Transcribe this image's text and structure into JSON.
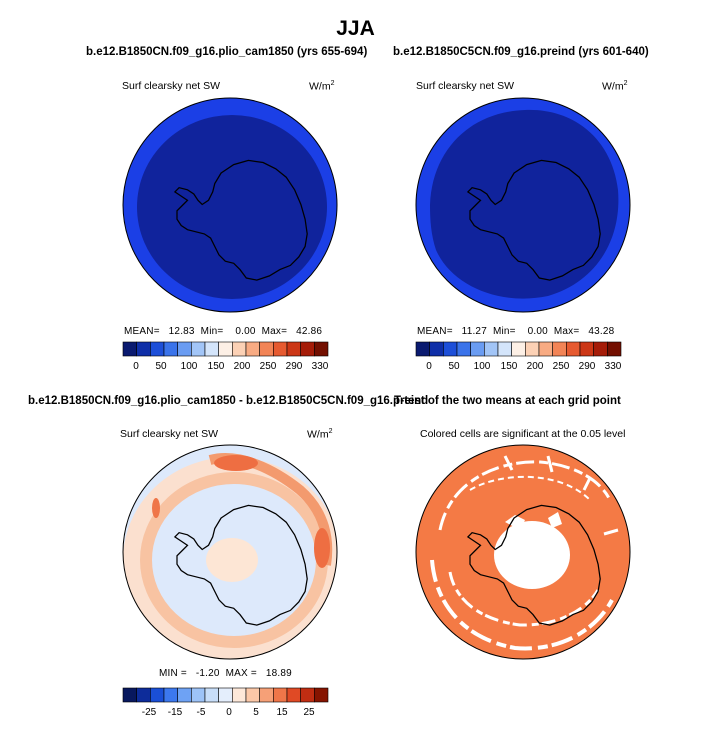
{
  "title": "JJA",
  "panels": [
    {
      "id": "plio",
      "case_title": "b.e12.B1850CN.f09_g16.plio_cam1850 (yrs 655-694)",
      "variable": "Surf clearsky net SW",
      "units_base": "W/m",
      "units_exp": "2",
      "stats": {
        "mean_label": "MEAN=",
        "mean": "12.83",
        "min_label": "Min=",
        "min": "0.00",
        "max_label": "Max=",
        "max": "42.86"
      }
    },
    {
      "id": "preind",
      "case_title": "b.e12.B1850C5CN.f09_g16.preind (yrs 601-640)",
      "variable": "Surf clearsky net SW",
      "units_base": "W/m",
      "units_exp": "2",
      "stats": {
        "mean_label": "MEAN=",
        "mean": "11.27",
        "min_label": "Min=",
        "min": "0.00",
        "max_label": "Max=",
        "max": "43.28"
      }
    },
    {
      "id": "diff",
      "case_title": "b.e12.B1850CN.f09_g16.plio_cam1850 - b.e12.B1850C5CN.f09_g16.preind",
      "variable": "Surf clearsky net SW",
      "units_base": "W/m",
      "units_exp": "2",
      "stats_text": "MIN =   -1.20  MAX =   18.89"
    },
    {
      "id": "ttest",
      "case_title": "T-test of the two means at each grid point",
      "subtitle": "Colored cells are significant at the 0.05 level"
    }
  ],
  "colors": {
    "deep_blue": "#10239c",
    "ring_blue": "#1b3fe6",
    "significant": "#f47a45",
    "diff_palette": [
      "#08185e",
      "#0d2c9a",
      "#1a4fd6",
      "#3c78ee",
      "#6ea2f4",
      "#9dc3f7",
      "#c8def9",
      "#e4eefc",
      "#fde8d9",
      "#fbc8a8",
      "#f6a077",
      "#ef7649",
      "#e04a25",
      "#c02d12",
      "#861400"
    ],
    "abs_palette": [
      "#0a1a70",
      "#0f2fa8",
      "#1d4fd8",
      "#3a73ea",
      "#6a9cf2",
      "#a2c5f7",
      "#d4e5fb",
      "#fdf0e6",
      "#fcd1b5",
      "#f8ab83",
      "#f28456",
      "#e65a30",
      "#cc3716",
      "#a51c08",
      "#730f00"
    ]
  },
  "chart_data": [
    {
      "type": "heatmap",
      "projection": "south polar stereographic",
      "title": "b.e12.B1850CN.f09_g16.plio_cam1850 (yrs 655-694)",
      "variable": "Surf clearsky net SW",
      "units": "W/m2",
      "colorbar_ticks": [
        0,
        50,
        100,
        150,
        200,
        250,
        290,
        330
      ],
      "stats": {
        "mean": 12.83,
        "min": 0.0,
        "max": 42.86
      }
    },
    {
      "type": "heatmap",
      "projection": "south polar stereographic",
      "title": "b.e12.B1850C5CN.f09_g16.preind (yrs 601-640)",
      "variable": "Surf clearsky net SW",
      "units": "W/m2",
      "colorbar_ticks": [
        0,
        50,
        100,
        150,
        200,
        250,
        290,
        330
      ],
      "stats": {
        "mean": 11.27,
        "min": 0.0,
        "max": 43.28
      }
    },
    {
      "type": "heatmap",
      "projection": "south polar stereographic",
      "title": "b.e12.B1850CN.f09_g16.plio_cam1850 - b.e12.B1850C5CN.f09_g16.preind",
      "variable": "Surf clearsky net SW",
      "units": "W/m2",
      "colorbar_ticks": [
        -25,
        -15,
        -5,
        0,
        5,
        15,
        25
      ],
      "stats": {
        "min": -1.2,
        "max": 18.89
      }
    },
    {
      "type": "heatmap",
      "projection": "south polar stereographic",
      "title": "T-test of the two means at each grid point",
      "subtitle": "Colored cells are significant at the 0.05 level",
      "significance_level": 0.05
    }
  ]
}
